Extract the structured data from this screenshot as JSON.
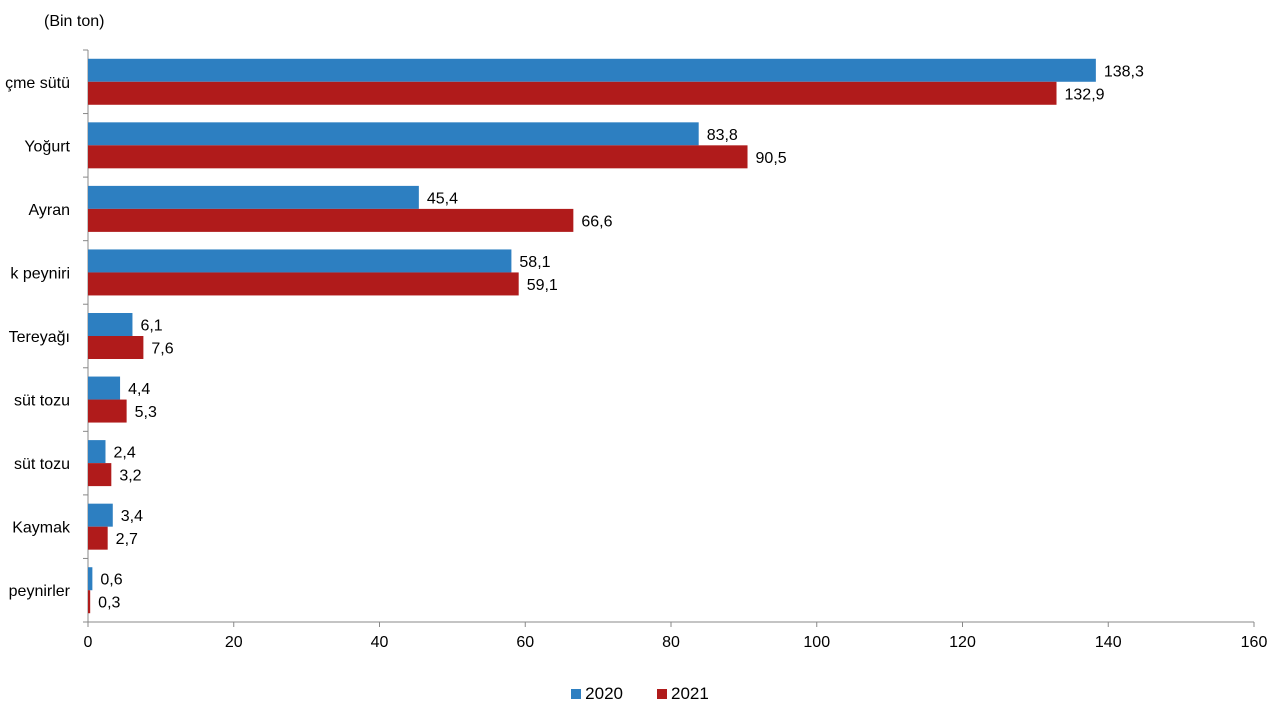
{
  "chart_data": {
    "type": "bar",
    "orientation": "horizontal",
    "unit_label": "(Bin ton)",
    "categories": [
      "çme sütü",
      "Yoğurt",
      "Ayran",
      "k peyniri",
      "Tereyağı",
      "süt tozu",
      "süt tozu",
      "Kaymak",
      "peynirler"
    ],
    "series": [
      {
        "name": "2020",
        "color": "#2d7fc1",
        "values": [
          138.3,
          83.8,
          45.4,
          58.1,
          6.1,
          4.4,
          2.4,
          3.4,
          0.6
        ],
        "labels": [
          "138,3",
          "83,8",
          "45,4",
          "58,1",
          "6,1",
          "4,4",
          "2,4",
          "3,4",
          "0,6"
        ]
      },
      {
        "name": "2021",
        "color": "#b01b1b",
        "values": [
          132.9,
          90.5,
          66.6,
          59.1,
          7.6,
          5.3,
          3.2,
          2.7,
          0.3
        ],
        "labels": [
          "132,9",
          "90,5",
          "66,6",
          "59,1",
          "7,6",
          "5,3",
          "3,2",
          "2,7",
          "0,3"
        ]
      }
    ],
    "xlim": [
      0,
      160
    ],
    "xticks": [
      "0",
      "20",
      "40",
      "60",
      "80",
      "100",
      "120",
      "140",
      "160"
    ],
    "grid": false,
    "legend_position": "bottom"
  }
}
